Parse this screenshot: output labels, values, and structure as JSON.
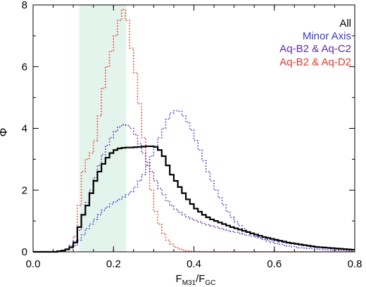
{
  "chart_data": {
    "type": "line",
    "subtype": "step-histogram",
    "title": "",
    "xlabel_main": "F",
    "xlabel_sub1": "M31",
    "xlabel_mid": "/F",
    "xlabel_sub2": "GC",
    "ylabel": "Φ",
    "xlim": [
      0.0,
      0.8
    ],
    "ylim": [
      0,
      8
    ],
    "xticks": [
      0.0,
      0.2,
      0.4,
      0.6,
      0.8
    ],
    "xtick_labels": [
      "0.0",
      "0.2",
      "0.4",
      "0.6",
      "0.8"
    ],
    "yticks": [
      0,
      2,
      4,
      6,
      8
    ],
    "ytick_labels": [
      "0",
      "2",
      "4",
      "6",
      "8"
    ],
    "grid": false,
    "legend_position": "top-right",
    "shaded_region": {
      "x": [
        0.115,
        0.232
      ],
      "color": "#e3f4ec"
    },
    "bin_edges": [
      0.0,
      0.01,
      0.02,
      0.03,
      0.04,
      0.05,
      0.06,
      0.07,
      0.08,
      0.09,
      0.1,
      0.11,
      0.12,
      0.13,
      0.14,
      0.15,
      0.16,
      0.17,
      0.18,
      0.19,
      0.2,
      0.21,
      0.22,
      0.23,
      0.24,
      0.25,
      0.26,
      0.27,
      0.28,
      0.29,
      0.3,
      0.31,
      0.32,
      0.33,
      0.34,
      0.35,
      0.36,
      0.37,
      0.38,
      0.39,
      0.4,
      0.41,
      0.42,
      0.43,
      0.44,
      0.45,
      0.46,
      0.47,
      0.48,
      0.49,
      0.5,
      0.51,
      0.52,
      0.53,
      0.54,
      0.55,
      0.56,
      0.57,
      0.58,
      0.59,
      0.6,
      0.61,
      0.62,
      0.63,
      0.64,
      0.65,
      0.66,
      0.67,
      0.68,
      0.69,
      0.7,
      0.71,
      0.72,
      0.73,
      0.74,
      0.75,
      0.76,
      0.77,
      0.78,
      0.79,
      0.8
    ],
    "series": [
      {
        "name": "All",
        "color": "#000000",
        "style": "solid",
        "values": [
          0.0,
          0.0,
          0.0,
          0.0,
          0.0,
          0.0,
          0.02,
          0.04,
          0.08,
          0.15,
          0.3,
          0.8,
          1.2,
          1.5,
          1.9,
          2.3,
          2.6,
          2.85,
          3.05,
          3.2,
          3.3,
          3.35,
          3.37,
          3.38,
          3.38,
          3.39,
          3.4,
          3.41,
          3.42,
          3.42,
          3.4,
          3.3,
          3.1,
          2.8,
          2.5,
          2.3,
          2.1,
          1.9,
          1.7,
          1.55,
          1.4,
          1.3,
          1.2,
          1.12,
          1.05,
          1.0,
          0.95,
          0.9,
          0.85,
          0.8,
          0.76,
          0.72,
          0.68,
          0.64,
          0.6,
          0.56,
          0.52,
          0.48,
          0.45,
          0.42,
          0.39,
          0.36,
          0.33,
          0.3,
          0.28,
          0.26,
          0.24,
          0.22,
          0.2,
          0.18,
          0.16,
          0.15,
          0.14,
          0.13,
          0.12,
          0.11,
          0.1,
          0.09,
          0.08,
          0.07
        ]
      },
      {
        "name": "Minor Axis",
        "color": "#3a3cc8",
        "style": "dotted",
        "values": [
          0.0,
          0.0,
          0.0,
          0.0,
          0.0,
          0.0,
          0.02,
          0.04,
          0.07,
          0.12,
          0.2,
          0.38,
          0.55,
          0.75,
          0.9,
          1.05,
          1.2,
          1.35,
          1.45,
          1.55,
          1.62,
          1.7,
          1.78,
          1.85,
          1.95,
          2.1,
          2.3,
          2.5,
          2.8,
          3.1,
          3.4,
          3.7,
          4.0,
          4.3,
          4.5,
          4.57,
          4.55,
          4.4,
          4.2,
          3.95,
          3.6,
          3.3,
          2.95,
          2.6,
          2.3,
          2.0,
          1.75,
          1.52,
          1.3,
          1.12,
          0.97,
          0.85,
          0.75,
          0.66,
          0.58,
          0.51,
          0.45,
          0.4,
          0.35,
          0.31,
          0.27,
          0.24,
          0.21,
          0.19,
          0.17,
          0.15,
          0.13,
          0.12,
          0.11,
          0.1,
          0.09,
          0.08,
          0.07,
          0.06,
          0.05,
          0.05,
          0.04,
          0.04,
          0.03,
          0.03
        ]
      },
      {
        "name": "Aq-B2 & Aq-C2",
        "color": "#5a2ca0",
        "style": "dotted",
        "values": [
          0.0,
          0.0,
          0.0,
          0.0,
          0.0,
          0.0,
          0.02,
          0.05,
          0.1,
          0.2,
          0.35,
          0.7,
          1.2,
          1.6,
          2.0,
          2.4,
          2.8,
          3.15,
          3.45,
          3.7,
          3.9,
          4.05,
          4.12,
          4.1,
          4.0,
          3.8,
          3.5,
          3.2,
          2.9,
          2.6,
          2.3,
          2.05,
          1.85,
          1.65,
          1.5,
          1.38,
          1.28,
          1.2,
          1.13,
          1.07,
          1.02,
          0.97,
          0.92,
          0.88,
          0.84,
          0.8,
          0.76,
          0.72,
          0.69,
          0.66,
          0.63,
          0.6,
          0.57,
          0.54,
          0.51,
          0.48,
          0.45,
          0.42,
          0.4,
          0.37,
          0.35,
          0.32,
          0.3,
          0.28,
          0.26,
          0.24,
          0.22,
          0.2,
          0.18,
          0.16,
          0.15,
          0.14,
          0.12,
          0.11,
          0.1,
          0.09,
          0.08,
          0.07,
          0.06,
          0.05
        ]
      },
      {
        "name": "Aq-B2 & Aq-D2",
        "color": "#e23a2e",
        "style": "dotted",
        "values": [
          0.0,
          0.0,
          0.0,
          0.0,
          0.0,
          0.0,
          0.02,
          0.05,
          0.1,
          0.2,
          0.5,
          1.5,
          2.6,
          3.0,
          3.2,
          3.6,
          4.4,
          5.3,
          6.0,
          6.5,
          7.0,
          7.5,
          7.85,
          7.5,
          6.6,
          5.8,
          4.8,
          3.7,
          2.8,
          2.0,
          1.3,
          0.9,
          0.6,
          0.38,
          0.25,
          0.15,
          0.09,
          0.05,
          0.03,
          0.02,
          0.01,
          0.01,
          0.0,
          0.0,
          0.0,
          0.0,
          0.0,
          0.0,
          0.0,
          0.0,
          0.0,
          0.0,
          0.0,
          0.0,
          0.0,
          0.0,
          0.0,
          0.0,
          0.0,
          0.0,
          0.0,
          0.0,
          0.0,
          0.0,
          0.0,
          0.0,
          0.0,
          0.0,
          0.0,
          0.0,
          0.0,
          0.0,
          0.0,
          0.0,
          0.0,
          0.0,
          0.0,
          0.0,
          0.0,
          0.0
        ]
      }
    ]
  }
}
